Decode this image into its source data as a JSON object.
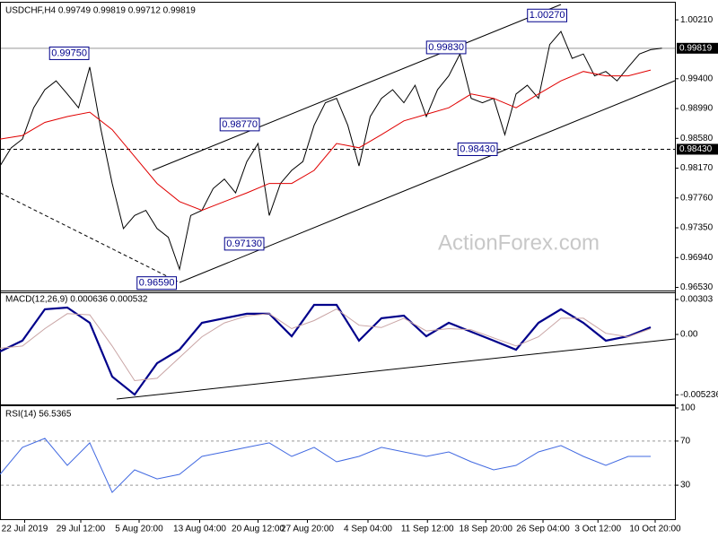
{
  "chart_data": [
    {
      "type": "line",
      "title": "USDCHF,H4  0.99749 0.99819 0.99712 0.99819",
      "watermark": "ActionForex.com",
      "xlim": [
        0,
        60
      ],
      "ylim": [
        0.96475,
        1.00421
      ],
      "yticks": [
        {
          "value": 1.0021,
          "label": "1.00210"
        },
        {
          "value": 0.994,
          "label": "0.99400"
        },
        {
          "value": 0.9899,
          "label": "0.98990"
        },
        {
          "value": 0.9858,
          "label": "0.98580"
        },
        {
          "value": 0.9817,
          "label": "0.98170"
        },
        {
          "value": 0.9776,
          "label": "0.97760"
        },
        {
          "value": 0.9735,
          "label": "0.97350"
        },
        {
          "value": 0.9694,
          "label": "0.96940"
        },
        {
          "value": 0.9653,
          "label": "0.96530"
        }
      ],
      "grid": false,
      "series": [
        {
          "name": "USDCHF",
          "color": "#000000",
          "x": [
            0,
            1,
            2,
            3,
            4,
            5,
            6,
            7,
            8,
            9,
            10,
            11,
            12,
            13,
            14,
            15,
            16,
            17,
            18,
            19,
            20,
            21,
            22,
            23,
            24,
            25,
            26,
            27,
            28,
            29,
            30,
            31,
            32,
            33,
            34,
            35,
            36,
            37,
            38,
            39,
            40,
            41,
            42,
            43,
            44,
            45,
            46,
            47,
            48,
            49,
            50,
            51,
            52,
            53,
            54,
            55,
            56,
            57,
            58,
            59
          ],
          "values": [
            0.982,
            0.9845,
            0.9857,
            0.99,
            0.9925,
            0.9937,
            0.9919,
            0.99,
            0.9956,
            0.987,
            0.9796,
            0.9734,
            0.9752,
            0.9759,
            0.9734,
            0.9722,
            0.9678,
            0.9752,
            0.9759,
            0.9789,
            0.9802,
            0.9783,
            0.9826,
            0.9851,
            0.9752,
            0.9796,
            0.9814,
            0.9826,
            0.9876,
            0.9907,
            0.9913,
            0.9876,
            0.982,
            0.9888,
            0.9913,
            0.9925,
            0.9907,
            0.9931,
            0.9888,
            0.9925,
            0.9944,
            0.9974,
            0.9913,
            0.9907,
            0.9913,
            0.9863,
            0.9919,
            0.9931,
            0.9913,
            0.9987,
            1.0005,
            0.9968,
            0.9974,
            0.9944,
            0.995,
            0.9937,
            0.9956,
            0.9974,
            0.998,
            0.9982
          ]
        },
        {
          "name": "MA",
          "color": "#e00000",
          "x": [
            0,
            2,
            4,
            6,
            8,
            10,
            12,
            14,
            16,
            18,
            20,
            22,
            24,
            26,
            28,
            30,
            32,
            34,
            36,
            38,
            40,
            42,
            44,
            46,
            48,
            50,
            52,
            54,
            56,
            58
          ],
          "values": [
            0.9857,
            0.9862,
            0.988,
            0.9888,
            0.9894,
            0.987,
            0.9833,
            0.9796,
            0.9771,
            0.9759,
            0.9771,
            0.9783,
            0.9796,
            0.9796,
            0.9814,
            0.9851,
            0.9845,
            0.9863,
            0.9882,
            0.9891,
            0.99,
            0.9919,
            0.9913,
            0.99,
            0.9919,
            0.9937,
            0.995,
            0.9944,
            0.9944,
            0.9952
          ]
        }
      ],
      "price_lines": [
        {
          "value": 0.99819,
          "label": "0.99819",
          "style": "solid"
        },
        {
          "value": 0.9843,
          "label": "0.98430",
          "style": "dashed"
        }
      ],
      "annotations": [
        {
          "x": 8,
          "value": 0.9975,
          "label": "0.99750"
        },
        {
          "x": 23.2,
          "value": 0.9877,
          "label": "0.98770"
        },
        {
          "x": 23.6,
          "value": 0.9713,
          "label": "0.97130"
        },
        {
          "x": 15.8,
          "value": 0.9659,
          "label": "0.96590"
        },
        {
          "x": 41.6,
          "value": 0.9983,
          "label": "0.99830"
        },
        {
          "x": 44.4,
          "value": 0.9843,
          "label": "0.98430"
        },
        {
          "x": 50.6,
          "value": 1.0027,
          "label": "1.00270"
        }
      ]
    },
    {
      "type": "line",
      "title": "MACD(12,26,9) 0.000636 0.000532",
      "ylim": [
        -0.00598,
        0.00357
      ],
      "yticks": [
        0.00303,
        {
          "value": 0,
          "label": "0.00"
        },
        -0.005236
      ],
      "grid": false,
      "series": [
        {
          "name": "MACD",
          "color": "#00008b",
          "x": [
            0,
            2,
            4,
            6,
            8,
            10,
            12,
            14,
            16,
            18,
            20,
            22,
            24,
            26,
            28,
            30,
            32,
            34,
            36,
            38,
            40,
            42,
            44,
            46,
            48,
            50,
            52,
            54,
            56,
            58
          ],
          "values": [
            -0.00148,
            -0.00054,
            0.00218,
            0.00233,
            0.00101,
            -0.00365,
            -0.00521,
            -0.00249,
            -0.00132,
            0.00101,
            0.0014,
            0.00179,
            0.00179,
            -0.00016,
            0.00256,
            0.00256,
            -0.00054,
            0.0014,
            0.00163,
            -0.00016,
            0.00101,
            0.00023,
            -0.00054,
            -0.00132,
            0.00101,
            0.00218,
            0.00101,
            -0.00054,
            -0.00016,
            0.00062
          ]
        },
        {
          "name": "Signal",
          "color": "#c9a4a4",
          "x": [
            0,
            2,
            4,
            6,
            8,
            10,
            12,
            14,
            16,
            18,
            20,
            22,
            24,
            26,
            28,
            30,
            32,
            34,
            36,
            38,
            40,
            42,
            44,
            46,
            48,
            50,
            52,
            54,
            56,
            58
          ],
          "values": [
            -0.0012,
            -0.001,
            0.0005,
            0.0018,
            0.0017,
            -0.001,
            -0.004,
            -0.0038,
            -0.002,
            -0.0002,
            0.001,
            0.0016,
            0.0018,
            0.0005,
            0.0012,
            0.0022,
            0.0008,
            0.0006,
            0.0014,
            0.0003,
            0.0005,
            0.0004,
            -0.0003,
            -0.001,
            -0.0002,
            0.0014,
            0.0014,
            0.0001,
            -0.0002,
            0.0005
          ]
        }
      ]
    },
    {
      "type": "line",
      "title": "RSI(14) 56.5365",
      "ylim": [
        0,
        100
      ],
      "yticks": [
        100,
        70,
        30
      ],
      "grid": "dashed",
      "xticks": [
        {
          "value": 2.2,
          "label": "22 Jul 2019"
        },
        {
          "value": 7.2,
          "label": "29 Jul 12:00"
        },
        {
          "value": 12.4,
          "label": "5 Aug 20:00"
        },
        {
          "value": 17.8,
          "label": "13 Aug 04:00"
        },
        {
          "value": 23,
          "label": "20 Aug 12:00"
        },
        {
          "value": 27.4,
          "label": "27 Aug 20:00"
        },
        {
          "value": 32.8,
          "label": "4 Sep 04:00"
        },
        {
          "value": 38.1,
          "label": "11 Sep 12:00"
        },
        {
          "value": 43.3,
          "label": "18 Sep 20:00"
        },
        {
          "value": 48.4,
          "label": "26 Sep 04:00"
        },
        {
          "value": 53.3,
          "label": "3 Oct 12:00"
        },
        {
          "value": 58.4,
          "label": "10 Oct 20:00"
        }
      ],
      "series": [
        {
          "name": "RSI",
          "color": "#4169e1",
          "x": [
            0,
            2,
            4,
            6,
            8,
            10,
            12,
            14,
            16,
            18,
            20,
            22,
            24,
            26,
            28,
            30,
            32,
            34,
            36,
            38,
            40,
            42,
            44,
            46,
            48,
            50,
            52,
            54,
            56,
            58
          ],
          "values": [
            39.8,
            64.3,
            72.4,
            48,
            68.4,
            23.5,
            43.9,
            35.7,
            39.8,
            56.1,
            60.2,
            64.3,
            68.4,
            56.1,
            64.3,
            51.2,
            56.1,
            64.3,
            60.2,
            56.1,
            60.2,
            51.2,
            43.9,
            48,
            60.2,
            65.9,
            56.1,
            48,
            56.1,
            56.1
          ]
        }
      ]
    }
  ]
}
